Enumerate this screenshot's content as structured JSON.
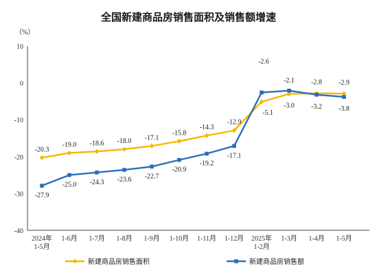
{
  "chart_data": {
    "type": "line",
    "title": "全国新建商品房销售面积及销售额增速",
    "unit_label": "（%）",
    "categories": [
      [
        "2024年",
        "1-5月"
      ],
      [
        "1-6月"
      ],
      [
        "1-7月"
      ],
      [
        "1-8月"
      ],
      [
        "1-9月"
      ],
      [
        "1-10月"
      ],
      [
        "1-11月"
      ],
      [
        "1-12月"
      ],
      [
        "2025年",
        "1-2月"
      ],
      [
        "1-3月"
      ],
      [
        "1-4月"
      ],
      [
        "1-5月"
      ]
    ],
    "ylim": [
      -40,
      10
    ],
    "yticks": [
      10,
      0,
      -10,
      -20,
      -30,
      -40
    ],
    "grid": false,
    "legend_position": "bottom",
    "series": [
      {
        "name": "新建商品房销售面积",
        "color": "#F5B800",
        "values": [
          -20.3,
          -19.0,
          -18.6,
          -18.0,
          -17.1,
          -15.8,
          -14.3,
          -12.9,
          -5.1,
          -3.0,
          -2.8,
          -2.9
        ],
        "labels": [
          "-20.3",
          "-19.0",
          "-18.6",
          "-18.0",
          "-17.1",
          "-15.8",
          "-14.3",
          "-12.9",
          "-5.1",
          "-3.0",
          "-2.8",
          "-2.9"
        ]
      },
      {
        "name": "新建商品房销售额",
        "color": "#2A6EBB",
        "values": [
          -27.9,
          -25.0,
          -24.3,
          -23.6,
          -22.7,
          -20.9,
          -19.2,
          -17.1,
          -2.6,
          -2.1,
          -3.2,
          -3.8
        ],
        "labels": [
          "-27.9",
          "-25.0",
          "-24.3",
          "-23.6",
          "-22.7",
          "-20.9",
          "-19.2",
          "-17.1",
          "-2.6",
          "-2.1",
          "-3.2",
          "-3.8"
        ]
      }
    ]
  }
}
